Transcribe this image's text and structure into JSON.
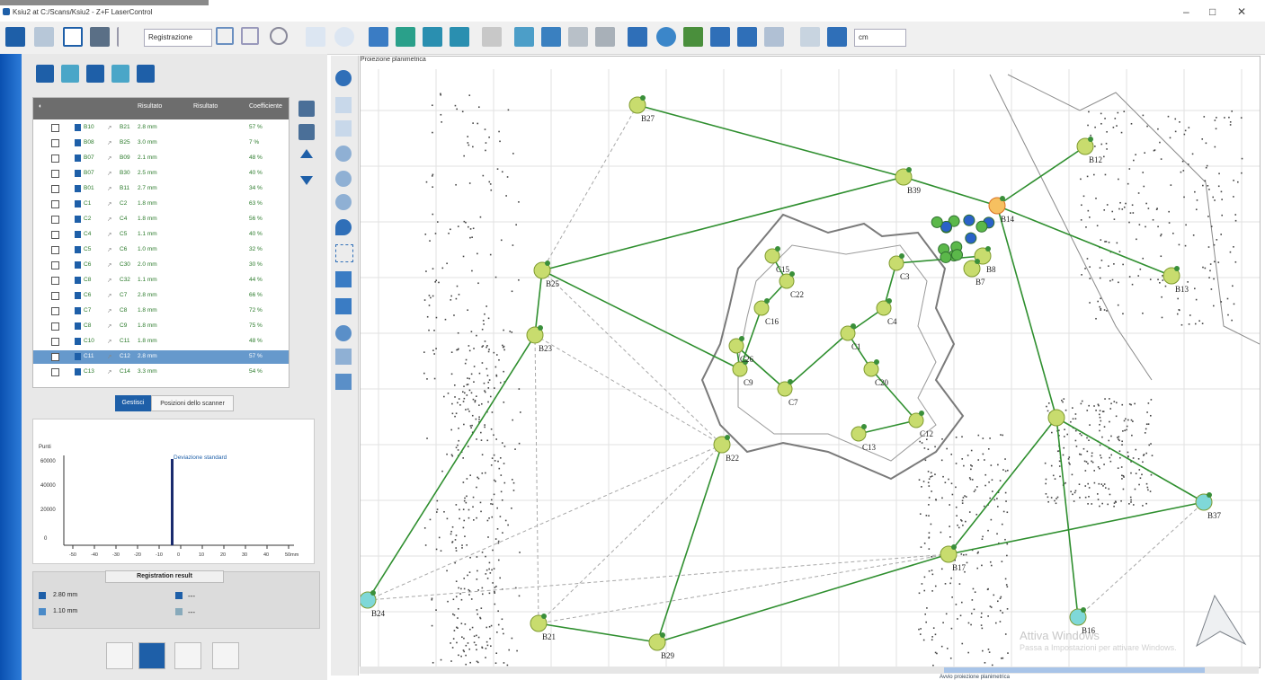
{
  "window": {
    "title": "Ksiu2 at C:/Scans/Ksiu2 - Z+F LaserControl",
    "minimize": "–",
    "maximize": "□",
    "close": "✕"
  },
  "toolbar": {
    "mode_select": "Registrazione",
    "units_select": "cm"
  },
  "table": {
    "headers": [
      "",
      "",
      "",
      "Risultato",
      "Risultato",
      "Coefficiente"
    ],
    "rows": [
      {
        "a": "B10",
        "b": "B21",
        "dist": "2.8 mm",
        "pct": "57 %"
      },
      {
        "a": "B08",
        "b": "B25",
        "dist": "3.0 mm",
        "pct": "7 %"
      },
      {
        "a": "B07",
        "b": "B09",
        "dist": "2.1 mm",
        "pct": "48 %"
      },
      {
        "a": "B07",
        "b": "B30",
        "dist": "2.5 mm",
        "pct": "40 %"
      },
      {
        "a": "B01",
        "b": "B11",
        "dist": "2.7 mm",
        "pct": "34 %"
      },
      {
        "a": "C1",
        "b": "C2",
        "dist": "1.8 mm",
        "pct": "63 %"
      },
      {
        "a": "C2",
        "b": "C4",
        "dist": "1.8 mm",
        "pct": "56 %"
      },
      {
        "a": "C4",
        "b": "C5",
        "dist": "1.1 mm",
        "pct": "40 %"
      },
      {
        "a": "C5",
        "b": "C6",
        "dist": "1.0 mm",
        "pct": "32 %"
      },
      {
        "a": "C6",
        "b": "C30",
        "dist": "2.0 mm",
        "pct": "30 %"
      },
      {
        "a": "C8",
        "b": "C32",
        "dist": "1.1 mm",
        "pct": "44 %"
      },
      {
        "a": "C6",
        "b": "C7",
        "dist": "2.8 mm",
        "pct": "66 %"
      },
      {
        "a": "C7",
        "b": "C8",
        "dist": "1.8 mm",
        "pct": "72 %"
      },
      {
        "a": "C8",
        "b": "C9",
        "dist": "1.8 mm",
        "pct": "75 %"
      },
      {
        "a": "C10",
        "b": "C11",
        "dist": "1.8 mm",
        "pct": "48 %"
      },
      {
        "a": "C11",
        "b": "C12",
        "dist": "2.8 mm",
        "pct": "57 %"
      },
      {
        "a": "C13",
        "b": "C14",
        "dist": "3.3 mm",
        "pct": "54 %"
      }
    ]
  },
  "segments": {
    "left": "Gestisci",
    "right": "Posizioni dello scanner"
  },
  "histogram": {
    "ylabel": "Punti",
    "legend": "Deviazione standard",
    "yticks": [
      "60000",
      "40000",
      "20000",
      "0"
    ],
    "xticks": [
      "-50",
      "-40",
      "-30",
      "-20",
      "-10",
      "0",
      "10",
      "20",
      "30",
      "40",
      "50mm"
    ]
  },
  "registration": {
    "title": "Registration result",
    "val1": "2.80 mm",
    "val2": "1.10 mm",
    "val3": "---",
    "val4": "---"
  },
  "map": {
    "title": "Proiezione planimetrica",
    "labels": [
      {
        "id": "B27",
        "text": "B27"
      },
      {
        "id": "B12",
        "text": "B12"
      },
      {
        "id": "B39",
        "text": "B39"
      },
      {
        "id": "B14",
        "text": "B14"
      },
      {
        "id": "B25",
        "text": "B25"
      },
      {
        "id": "B13",
        "text": "B13"
      },
      {
        "id": "B23",
        "text": "B23"
      },
      {
        "id": "B22",
        "text": "B22"
      },
      {
        "id": "B24",
        "text": "B24"
      },
      {
        "id": "B21",
        "text": "B21"
      },
      {
        "id": "B29",
        "text": "B29"
      },
      {
        "id": "B17",
        "text": "B17"
      },
      {
        "id": "B16",
        "text": "B16"
      },
      {
        "id": "B37",
        "text": "B37"
      },
      {
        "id": "B8",
        "text": "B8"
      },
      {
        "id": "B7",
        "text": "B7"
      },
      {
        "id": "C3",
        "text": "C3"
      },
      {
        "id": "C4",
        "text": "C4"
      },
      {
        "id": "C15",
        "text": "C15"
      },
      {
        "id": "C22",
        "text": "C22"
      },
      {
        "id": "C16",
        "text": "C16"
      },
      {
        "id": "C7",
        "text": "C7"
      },
      {
        "id": "C20",
        "text": "C20"
      },
      {
        "id": "C13",
        "text": "C13"
      },
      {
        "id": "C12",
        "text": "C12"
      },
      {
        "id": "C9",
        "text": "C9"
      },
      {
        "id": "C26",
        "text": "C26"
      },
      {
        "id": "C1",
        "text": "C1"
      }
    ]
  },
  "watermark": {
    "line1": "Attiva Windows",
    "line2": "Passa a Impostazioni per attivare Windows."
  },
  "status": "Avvio proiezione planimetrica",
  "colors": {
    "accent": "#1e5fa8",
    "link": "#2f8f2f",
    "node": "#c8dc6e",
    "node_cyan": "#7fd8d8"
  }
}
